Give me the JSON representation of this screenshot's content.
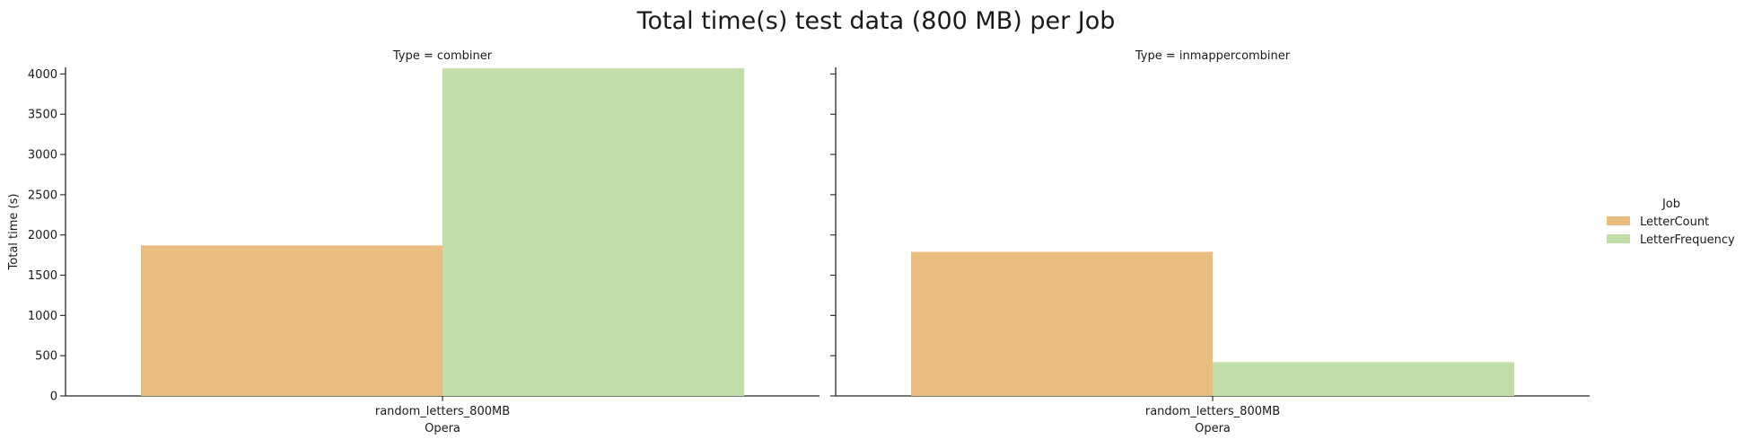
{
  "chart_data": {
    "type": "bar",
    "title": "Total time(s) test data (800 MB) per Job",
    "ylabel": "Total time (s)",
    "ylim": [
      0,
      4250
    ],
    "yticks": [
      0,
      500,
      1000,
      1500,
      2000,
      2500,
      3000,
      3500,
      4000
    ],
    "legend": {
      "title": "Job",
      "placement": "right"
    },
    "series_colors": {
      "LetterCount": "#ebbc80",
      "LetterFrequency": "#c1dea8"
    },
    "panels": [
      {
        "title": "Type = combiner",
        "xlabel": "Opera",
        "categories": [
          "random_letters_800MB"
        ],
        "series": [
          {
            "name": "LetterCount",
            "values": [
              1870
            ]
          },
          {
            "name": "LetterFrequency",
            "values": [
              4070
            ]
          }
        ]
      },
      {
        "title": "Type = inmappercombiner",
        "xlabel": "Opera",
        "categories": [
          "random_letters_800MB"
        ],
        "series": [
          {
            "name": "LetterCount",
            "values": [
              1790
            ]
          },
          {
            "name": "LetterFrequency",
            "values": [
              420
            ]
          }
        ]
      }
    ]
  }
}
